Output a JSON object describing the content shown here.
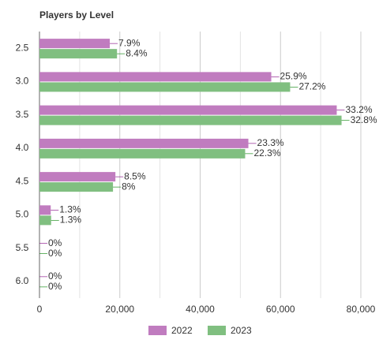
{
  "chart_data": {
    "type": "hbar",
    "title": "Players by Level",
    "categories": [
      "2.5",
      "3.0",
      "3.5",
      "4.0",
      "4.5",
      "5.0",
      "5.5",
      "6.0"
    ],
    "series": [
      {
        "name": "2022",
        "color": "#c07cbf",
        "label_color": "#800080",
        "values": [
          17500,
          57700,
          74000,
          52000,
          18900,
          2800,
          0,
          0
        ],
        "labels": [
          "7.9%",
          "25.9%",
          "33.2%",
          "23.3%",
          "8.5%",
          "1.3%",
          "0%",
          "0%"
        ]
      },
      {
        "name": "2023",
        "color": "#80bf80",
        "label_color": "#008000",
        "values": [
          19300,
          62400,
          75200,
          51200,
          18300,
          2900,
          0,
          0
        ],
        "labels": [
          "8.4%",
          "27.2%",
          "32.8%",
          "22.3%",
          "8%",
          "1.3%",
          "0%",
          "0%"
        ]
      }
    ],
    "xlim": [
      0,
      80000
    ],
    "xticks": [
      0,
      {
        "value": 20000,
        "label": "20,000"
      },
      {
        "value": 40000,
        "label": "40,000"
      },
      {
        "value": 60000,
        "label": "60,000"
      },
      {
        "value": 80000,
        "label": "80,000"
      }
    ],
    "xminor": [
      10000,
      30000,
      50000,
      70000
    ],
    "grid": true
  }
}
